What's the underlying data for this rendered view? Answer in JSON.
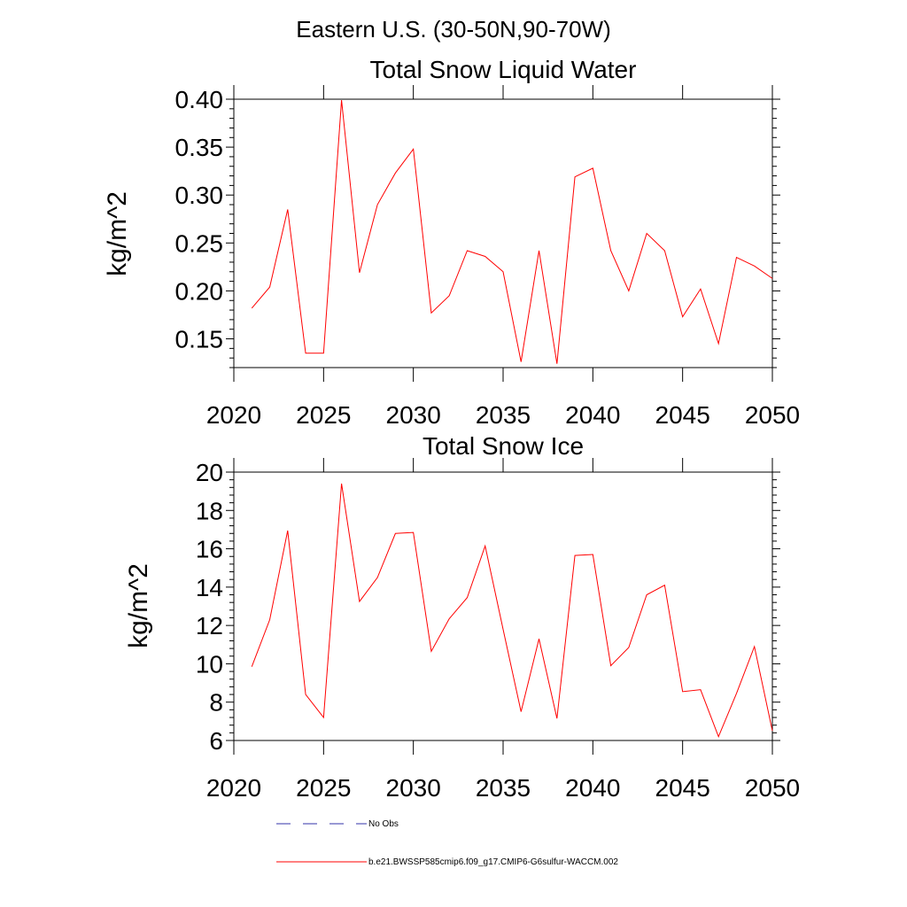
{
  "figure": {
    "suptitle": "Eastern U.S. (30-50N,90-70W)"
  },
  "chart_data": [
    {
      "type": "line",
      "title": "Total Snow Liquid Water",
      "xlabel": "",
      "ylabel": "kg/m^2",
      "xlim": [
        2020,
        2050
      ],
      "ylim": [
        0.12,
        0.4
      ],
      "xticks": [
        2020,
        2025,
        2030,
        2035,
        2040,
        2045,
        2050
      ],
      "yticks": [
        0.15,
        0.2,
        0.25,
        0.3,
        0.35,
        0.4
      ],
      "ytick_labels": [
        "0.15",
        "0.20",
        "0.25",
        "0.30",
        "0.35",
        "0.40"
      ],
      "series": [
        {
          "name": "b.e21.BWSSP585cmip6.f09_g17.CMIP6-G6sulfur-WACCM.002",
          "color": "#ff0000",
          "x": [
            2021,
            2022,
            2023,
            2024,
            2025,
            2026,
            2027,
            2028,
            2029,
            2030,
            2031,
            2032,
            2033,
            2034,
            2035,
            2036,
            2037,
            2038,
            2039,
            2040,
            2041,
            2042,
            2043,
            2044,
            2045,
            2046,
            2047,
            2048,
            2049,
            2050
          ],
          "values": [
            0.182,
            0.204,
            0.285,
            0.135,
            0.135,
            0.399,
            0.219,
            0.29,
            0.323,
            0.348,
            0.177,
            0.195,
            0.242,
            0.236,
            0.22,
            0.126,
            0.242,
            0.124,
            0.319,
            0.328,
            0.242,
            0.2,
            0.26,
            0.242,
            0.173,
            0.202,
            0.145,
            0.235,
            0.226,
            0.213
          ]
        }
      ]
    },
    {
      "type": "line",
      "title": "Total Snow Ice",
      "xlabel": "",
      "ylabel": "kg/m^2",
      "xlim": [
        2020,
        2050
      ],
      "ylim": [
        6,
        20
      ],
      "xticks": [
        2020,
        2025,
        2030,
        2035,
        2040,
        2045,
        2050
      ],
      "yticks": [
        6,
        8,
        10,
        12,
        14,
        16,
        18,
        20
      ],
      "ytick_labels": [
        "6",
        "8",
        "10",
        "12",
        "14",
        "16",
        "18",
        "20"
      ],
      "series": [
        {
          "name": "b.e21.BWSSP585cmip6.f09_g17.CMIP6-G6sulfur-WACCM.002",
          "color": "#ff0000",
          "x": [
            2021,
            2022,
            2023,
            2024,
            2025,
            2026,
            2027,
            2028,
            2029,
            2030,
            2031,
            2032,
            2033,
            2034,
            2035,
            2036,
            2037,
            2038,
            2039,
            2040,
            2041,
            2042,
            2043,
            2044,
            2045,
            2046,
            2047,
            2048,
            2049,
            2050
          ],
          "values": [
            9.85,
            12.3,
            16.95,
            8.4,
            7.2,
            19.4,
            13.25,
            14.5,
            16.8,
            16.85,
            10.65,
            12.35,
            13.45,
            16.15,
            11.8,
            7.5,
            11.3,
            7.15,
            15.65,
            15.7,
            9.9,
            10.85,
            13.6,
            14.1,
            8.55,
            8.65,
            6.2,
            8.45,
            10.9,
            6.5
          ]
        }
      ]
    }
  ],
  "legend": {
    "placement": "bottom",
    "items": [
      {
        "label": "No Obs",
        "style": "dashed",
        "color": "#3333aa"
      },
      {
        "label": "b.e21.BWSSP585cmip6.f09_g17.CMIP6-G6sulfur-WACCM.002",
        "style": "solid",
        "color": "#ff0000"
      }
    ]
  }
}
